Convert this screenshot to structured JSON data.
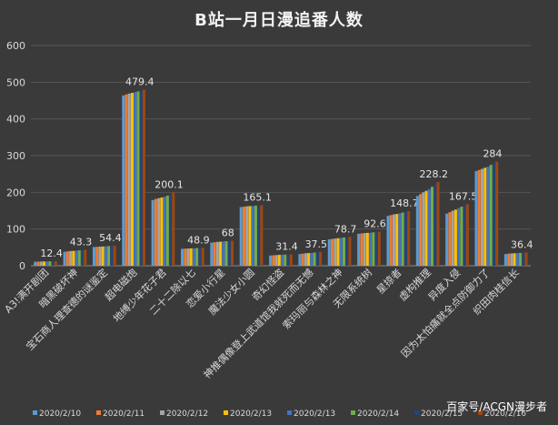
{
  "chart_data": {
    "type": "bar",
    "title": "B站一月日漫追番人数",
    "xlabel": "",
    "ylabel": "",
    "ylim": [
      0,
      600
    ],
    "yticks": [
      0,
      100,
      200,
      300,
      400,
      500,
      600
    ],
    "grid": true,
    "legend_position": "bottom",
    "categories": [
      "A3!满开剧团",
      "暗黑破坏神",
      "宝石商人理查德的谜鉴定",
      "超电磁炮",
      "地缚少年花子君",
      "二十二除以七",
      "恋爱小行星",
      "魔法少女小圆",
      "奇幻怪盗",
      "神推偶像登上武道馆我就死而无憾",
      "索玛丽与森林之神",
      "无限系统树",
      "星掠者",
      "虚构推理",
      "异度入侵",
      "因为太怕痛就全点防御力了",
      "织田肉桂信长"
    ],
    "labels": [
      "12.4",
      "43.3",
      "54.4",
      "479.4",
      "200.1",
      "48.9",
      "68",
      "165.1",
      "31.4",
      "37.5",
      "78.7",
      "92.6",
      "148.7",
      "228.2",
      "167.5",
      "284",
      "36.4"
    ],
    "series": [
      {
        "name": "2020/2/10",
        "color": "#5b9bd5",
        "values": [
          11.0,
          38.0,
          51.0,
          464.0,
          179.0,
          46.0,
          63.0,
          160.0,
          28.0,
          32.0,
          72.0,
          87.0,
          136.0,
          190.0,
          142.0,
          258.0,
          32.0
        ]
      },
      {
        "name": "2020/2/11",
        "color": "#ed7d31",
        "values": [
          11.2,
          39.0,
          51.5,
          467.0,
          182.0,
          46.5,
          64.0,
          161.0,
          28.5,
          33.0,
          73.0,
          88.0,
          138.0,
          195.0,
          146.0,
          261.0,
          33.0
        ]
      },
      {
        "name": "2020/2/12",
        "color": "#a5a5a5",
        "values": [
          11.4,
          40.0,
          52.0,
          469.0,
          184.0,
          47.0,
          65.0,
          162.0,
          29.0,
          34.0,
          74.0,
          89.0,
          140.0,
          200.0,
          150.0,
          264.0,
          33.5
        ]
      },
      {
        "name": "2020/2/13",
        "color": "#ffc000",
        "values": [
          11.6,
          40.5,
          52.5,
          471.0,
          186.0,
          47.3,
          65.5,
          162.5,
          29.5,
          34.5,
          75.0,
          89.5,
          141.0,
          204.0,
          153.0,
          267.0,
          34.0
        ]
      },
      {
        "name": "2020/2/13",
        "color": "#4472c4",
        "values": [
          11.8,
          41.0,
          53.0,
          473.0,
          188.0,
          47.6,
          66.0,
          163.0,
          30.0,
          35.0,
          76.0,
          90.0,
          143.0,
          209.0,
          157.0,
          270.0,
          34.5
        ]
      },
      {
        "name": "2020/2/14",
        "color": "#70ad47",
        "values": [
          12.0,
          41.8,
          53.5,
          475.0,
          191.0,
          48.0,
          66.8,
          163.8,
          30.5,
          36.0,
          77.0,
          91.0,
          145.0,
          215.0,
          161.0,
          275.0,
          35.0
        ]
      },
      {
        "name": "2020/2/15",
        "color": "#264478",
        "values": [
          12.2,
          42.5,
          54.0,
          477.0,
          195.0,
          48.5,
          67.4,
          164.5,
          31.0,
          36.8,
          78.0,
          92.0,
          147.0,
          222.0,
          165.0,
          280.0,
          35.8
        ]
      },
      {
        "name": "2020/2/16",
        "color": "#9e480e",
        "values": [
          12.4,
          43.3,
          54.4,
          479.4,
          200.1,
          48.9,
          68.0,
          165.1,
          31.4,
          37.5,
          78.7,
          92.6,
          148.7,
          228.2,
          167.5,
          284.0,
          36.4
        ]
      }
    ]
  },
  "watermark": "百家号/ACGN漫步者"
}
